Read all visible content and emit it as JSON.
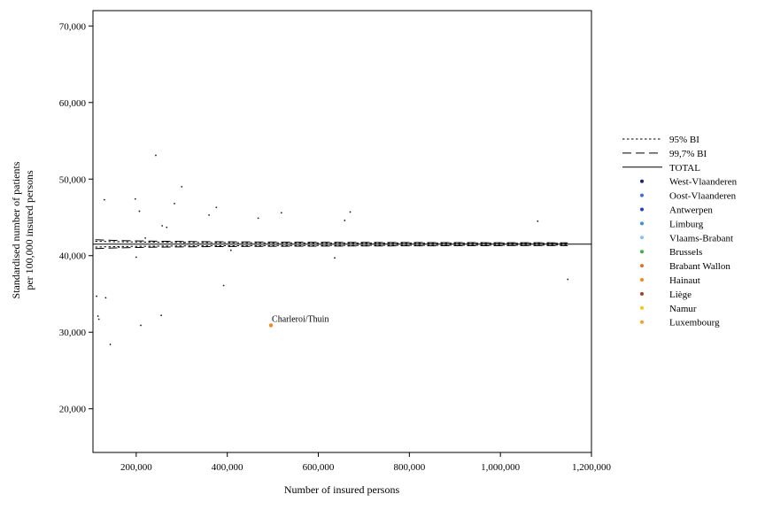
{
  "chart_data": {
    "type": "scatter",
    "xlabel": "Number of insured persons",
    "ylabel_lines": [
      "Standardised number of patients",
      "per 100,000 insured persons"
    ],
    "xlim": [
      105000,
      1200000
    ],
    "ylim": [
      14300,
      72000
    ],
    "x_ticks": [
      200000,
      400000,
      600000,
      800000,
      1000000,
      1200000
    ],
    "x_tick_labels": [
      "200,000",
      "400,000",
      "600,000",
      "800,000",
      "1,000,000",
      "1,200,000"
    ],
    "y_ticks": [
      20000,
      30000,
      40000,
      50000,
      60000,
      70000
    ],
    "y_tick_labels": [
      "20,000",
      "30,000",
      "40,000",
      "50,000",
      "60,000",
      "70,000"
    ],
    "grid": false,
    "legend_position": "right",
    "total": 41500,
    "limits": [
      {
        "name": "95% BI",
        "style": "dotted",
        "z": 1.96
      },
      {
        "name": "99,7% BI",
        "style": "dashed",
        "z": 3.0
      }
    ],
    "total_line": {
      "name": "TOTAL",
      "style": "solid"
    },
    "limit_x_range": [
      110000,
      1148000
    ],
    "groups": [
      {
        "name": "West-Vlaanderen",
        "color": "#1a237e"
      },
      {
        "name": "Oost-Vlaanderen",
        "color": "#3f6fd8"
      },
      {
        "name": "Antwerpen",
        "color": "#1f3fd0"
      },
      {
        "name": "Limburg",
        "color": "#3a8fe0"
      },
      {
        "name": "Vlaams-Brabant",
        "color": "#8ac0f0"
      },
      {
        "name": "Brussels",
        "color": "#3cb043"
      },
      {
        "name": "Brabant Wallon",
        "color": "#e0702a"
      },
      {
        "name": "Hainaut",
        "color": "#f08a24"
      },
      {
        "name": "Liège",
        "color": "#a0402a"
      },
      {
        "name": "Namur",
        "color": "#f5c518"
      },
      {
        "name": "Luxembourg",
        "color": "#f0a030"
      }
    ],
    "points": [
      {
        "x": 130000,
        "y": 47300
      },
      {
        "x": 198000,
        "y": 47400
      },
      {
        "x": 207000,
        "y": 45800
      },
      {
        "x": 243000,
        "y": 53100
      },
      {
        "x": 284000,
        "y": 46800
      },
      {
        "x": 300000,
        "y": 49000
      },
      {
        "x": 257000,
        "y": 43900
      },
      {
        "x": 267000,
        "y": 43700
      },
      {
        "x": 360000,
        "y": 45300
      },
      {
        "x": 376000,
        "y": 46300
      },
      {
        "x": 468000,
        "y": 44900
      },
      {
        "x": 519000,
        "y": 45600
      },
      {
        "x": 658000,
        "y": 44600
      },
      {
        "x": 670000,
        "y": 45700
      },
      {
        "x": 1082000,
        "y": 44500
      },
      {
        "x": 220000,
        "y": 42300
      },
      {
        "x": 270000,
        "y": 41800
      },
      {
        "x": 305000,
        "y": 41700
      },
      {
        "x": 162000,
        "y": 41100
      },
      {
        "x": 408000,
        "y": 40700
      },
      {
        "x": 200000,
        "y": 39800
      },
      {
        "x": 636000,
        "y": 39700
      },
      {
        "x": 392000,
        "y": 36100
      },
      {
        "x": 1148000,
        "y": 36900
      },
      {
        "x": 113000,
        "y": 34700
      },
      {
        "x": 133000,
        "y": 34500
      },
      {
        "x": 116000,
        "y": 32100
      },
      {
        "x": 118000,
        "y": 31700
      },
      {
        "x": 255000,
        "y": 32200
      },
      {
        "x": 210000,
        "y": 30900
      },
      {
        "x": 143000,
        "y": 28400
      }
    ],
    "annotations": [
      {
        "label": "Charleroi/Thuin",
        "x": 496000,
        "y": 30900,
        "color": "#f08a24"
      }
    ]
  }
}
